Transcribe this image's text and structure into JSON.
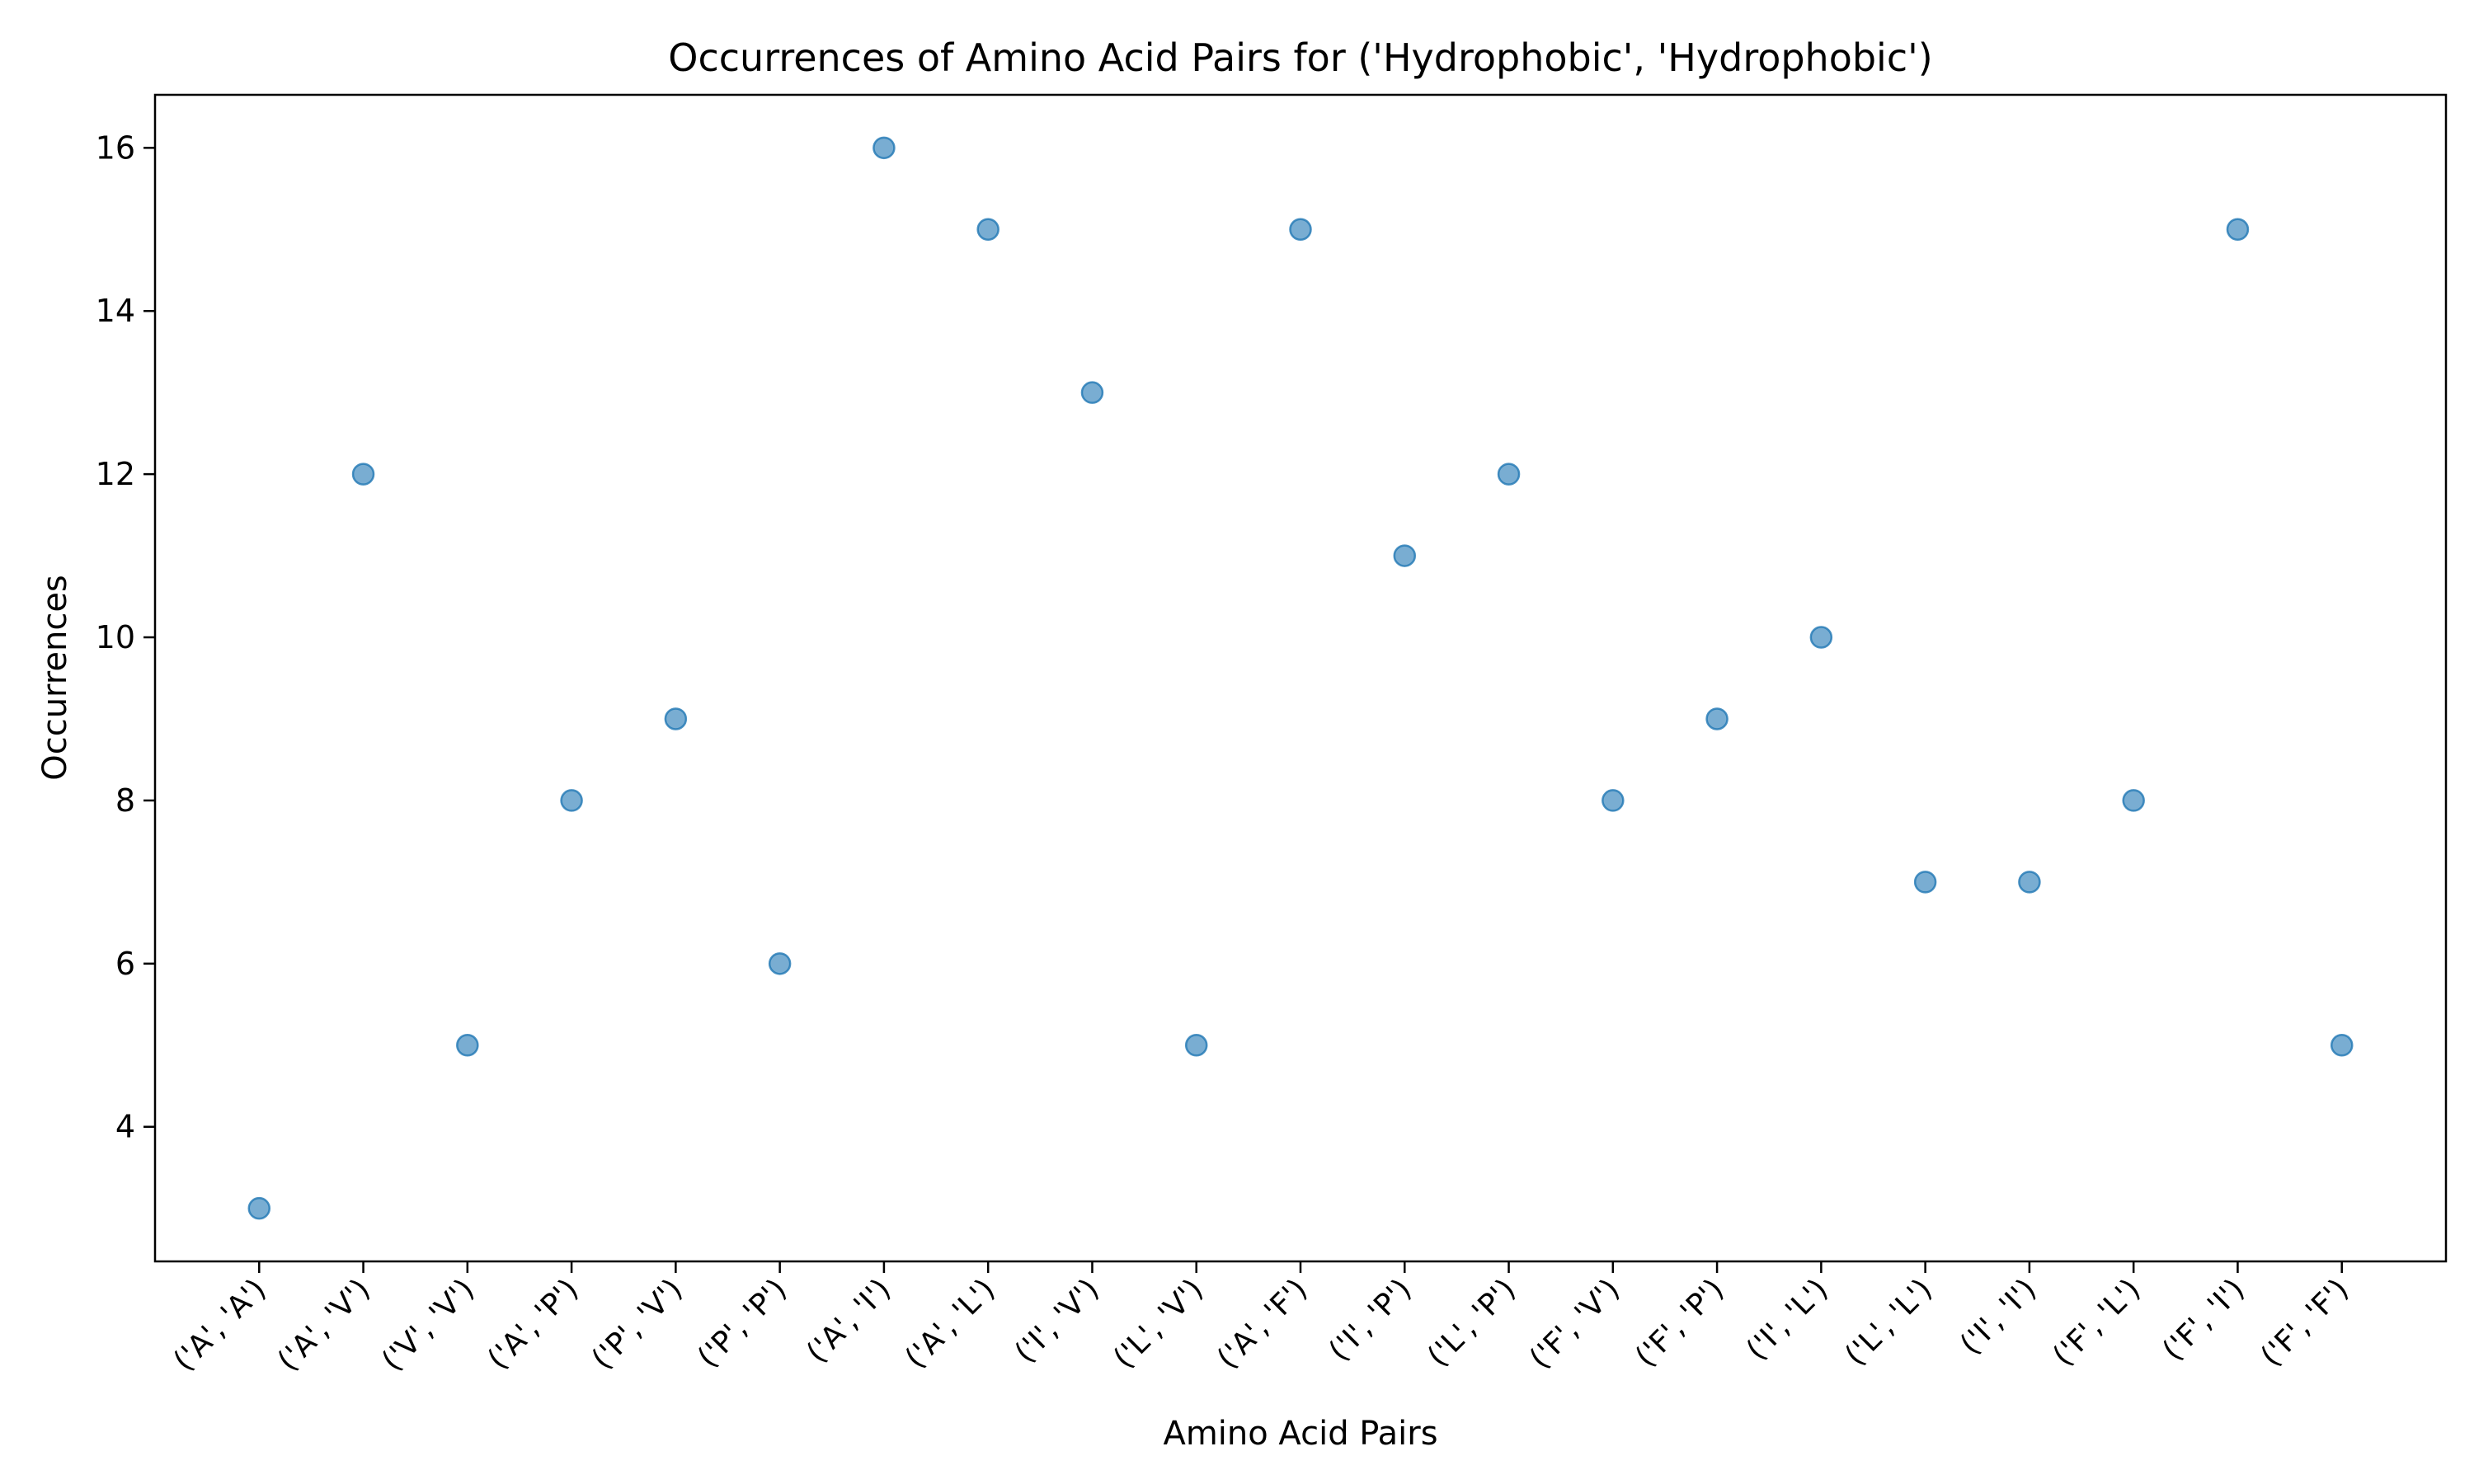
{
  "chart_data": {
    "type": "scatter",
    "title": "Occurrences of Amino Acid Pairs for ('Hydrophobic', 'Hydrophobic')",
    "xlabel": "Amino Acid Pairs",
    "ylabel": "Occurrences",
    "categories": [
      "('A', 'A')",
      "('A', 'V')",
      "('V', 'V')",
      "('A', 'P')",
      "('P', 'V')",
      "('P', 'P')",
      "('A', 'I')",
      "('A', 'L')",
      "('I', 'V')",
      "('L', 'V')",
      "('A', 'F')",
      "('I', 'P')",
      "('L', 'P')",
      "('F', 'V')",
      "('F', 'P')",
      "('I', 'L')",
      "('L', 'L')",
      "('I', 'I')",
      "('F', 'L')",
      "('F', 'I')",
      "('F', 'F')"
    ],
    "values": [
      3,
      12,
      5,
      8,
      9,
      6,
      16,
      15,
      13,
      5,
      15,
      11,
      12,
      8,
      9,
      10,
      7,
      7,
      8,
      15,
      5
    ],
    "ylim": [
      2.35,
      16.65
    ],
    "yticks": [
      4,
      6,
      8,
      10,
      12,
      14,
      16
    ],
    "grid": false,
    "legend": "none",
    "colors": {
      "marker_fill": "#1f77b4",
      "marker_edge": "#1f77b4",
      "axes": "#000000",
      "text": "#000000",
      "background": "#ffffff"
    },
    "marker_alpha": 0.6
  }
}
